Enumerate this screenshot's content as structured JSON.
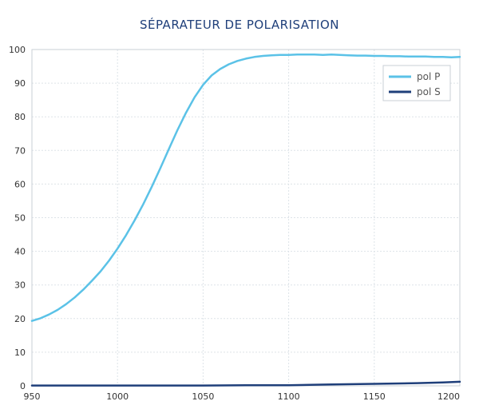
{
  "chart_data": {
    "type": "line",
    "title": "SÉPARATEUR DE POLARISATION",
    "xlabel": "",
    "ylabel": "",
    "xlim": [
      950,
      1200
    ],
    "ylim": [
      0,
      100
    ],
    "x_ticks": [
      950,
      1000,
      1050,
      1100,
      1150,
      1200
    ],
    "y_ticks": [
      0,
      10,
      20,
      30,
      40,
      50,
      60,
      70,
      80,
      90,
      100
    ],
    "grid": true,
    "legend_position": "top-right",
    "series": [
      {
        "name": "pol P",
        "color": "#5BC2E7",
        "x": [
          950,
          955,
          960,
          965,
          970,
          975,
          980,
          985,
          990,
          995,
          1000,
          1005,
          1010,
          1015,
          1020,
          1025,
          1030,
          1035,
          1040,
          1045,
          1050,
          1055,
          1060,
          1065,
          1070,
          1075,
          1080,
          1085,
          1090,
          1095,
          1100,
          1105,
          1110,
          1115,
          1120,
          1125,
          1130,
          1135,
          1140,
          1145,
          1150,
          1155,
          1160,
          1165,
          1170,
          1175,
          1180,
          1185,
          1190,
          1195,
          1200
        ],
        "y": [
          19.3,
          20.1,
          21.2,
          22.6,
          24.3,
          26.3,
          28.6,
          31.2,
          34.0,
          37.2,
          40.8,
          44.8,
          49.2,
          54.0,
          59.2,
          64.7,
          70.4,
          76.0,
          81.2,
          85.8,
          89.5,
          92.3,
          94.2,
          95.6,
          96.6,
          97.3,
          97.8,
          98.1,
          98.3,
          98.4,
          98.4,
          98.5,
          98.5,
          98.5,
          98.4,
          98.5,
          98.4,
          98.3,
          98.2,
          98.2,
          98.1,
          98.1,
          98.0,
          98.0,
          97.9,
          97.9,
          97.9,
          97.8,
          97.8,
          97.7,
          97.8
        ]
      },
      {
        "name": "pol S",
        "color": "#1F3F7A",
        "x": [
          950,
          975,
          1000,
          1025,
          1050,
          1075,
          1100,
          1125,
          1150,
          1175,
          1190,
          1200
        ],
        "y": [
          0.1,
          0.1,
          0.1,
          0.1,
          0.1,
          0.2,
          0.2,
          0.4,
          0.6,
          0.8,
          1.0,
          1.2
        ]
      }
    ]
  }
}
